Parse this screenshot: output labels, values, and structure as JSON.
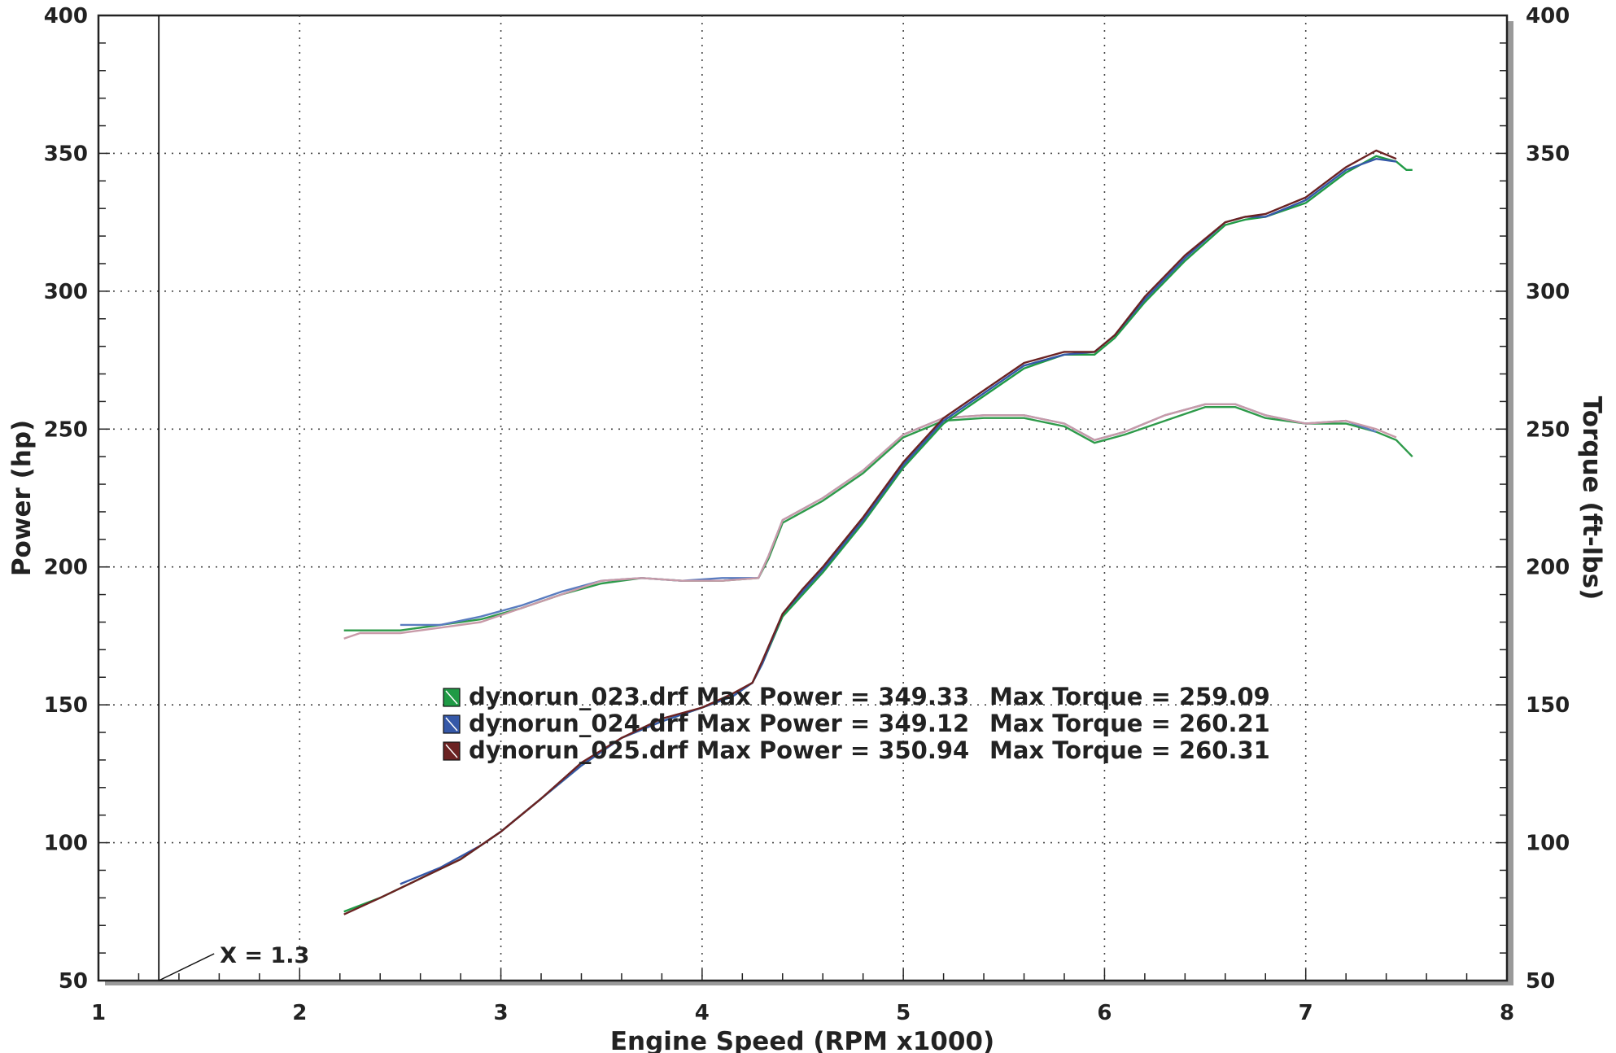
{
  "chart_data": {
    "type": "line",
    "xlabel": "Engine Speed (RPM x1000)",
    "ylabel_left": "Power (hp)",
    "ylabel_right": "Torque (ft-lbs)",
    "xlim": [
      1,
      8
    ],
    "ylim_left": [
      50,
      400
    ],
    "ylim_right": [
      50,
      400
    ],
    "x_ticks": [
      1,
      2,
      3,
      4,
      5,
      6,
      7,
      8
    ],
    "y_ticks_left": [
      50,
      100,
      150,
      200,
      250,
      300,
      350,
      400
    ],
    "y_ticks_right": [
      50,
      100,
      150,
      200,
      250,
      300,
      350,
      400
    ],
    "grid": true,
    "annotation": {
      "text": "X = 1.3",
      "x": 1.3
    },
    "legend": [
      {
        "file": "dynorun_023.drf",
        "text": "Max Power = 349.33",
        "torque": "Max Torque = 259.09"
      },
      {
        "file": "dynorun_024.drf",
        "text": "Max Power = 349.12",
        "torque": "Max Torque = 260.21"
      },
      {
        "file": "dynorun_025.drf",
        "text": "Max Power = 350.94",
        "torque": "Max Torque = 260.31"
      }
    ],
    "series": [
      {
        "name": "dynorun_023.drf",
        "power_color": "#1f9a45",
        "torque_color": "#2e9a4a",
        "power": [
          [
            2.22,
            75
          ],
          [
            2.4,
            80
          ],
          [
            2.6,
            87
          ],
          [
            2.8,
            94
          ],
          [
            3.0,
            104
          ],
          [
            3.2,
            116
          ],
          [
            3.4,
            128
          ],
          [
            3.6,
            138
          ],
          [
            3.8,
            144
          ],
          [
            4.0,
            149
          ],
          [
            4.15,
            153
          ],
          [
            4.25,
            158
          ],
          [
            4.3,
            165
          ],
          [
            4.4,
            182
          ],
          [
            4.5,
            190
          ],
          [
            4.6,
            198
          ],
          [
            4.8,
            216
          ],
          [
            5.0,
            236
          ],
          [
            5.2,
            252
          ],
          [
            5.4,
            262
          ],
          [
            5.6,
            272
          ],
          [
            5.8,
            277
          ],
          [
            5.95,
            277
          ],
          [
            6.05,
            283
          ],
          [
            6.2,
            296
          ],
          [
            6.4,
            311
          ],
          [
            6.6,
            324
          ],
          [
            6.7,
            326
          ],
          [
            6.8,
            327
          ],
          [
            7.0,
            332
          ],
          [
            7.2,
            343
          ],
          [
            7.35,
            349
          ],
          [
            7.45,
            347
          ],
          [
            7.5,
            344
          ],
          [
            7.53,
            344
          ]
        ],
        "torque": [
          [
            2.22,
            177
          ],
          [
            2.5,
            177
          ],
          [
            2.7,
            179
          ],
          [
            2.9,
            181
          ],
          [
            3.1,
            185
          ],
          [
            3.3,
            190
          ],
          [
            3.5,
            194
          ],
          [
            3.7,
            196
          ],
          [
            3.9,
            195
          ],
          [
            4.1,
            195
          ],
          [
            4.28,
            196
          ],
          [
            4.33,
            203
          ],
          [
            4.4,
            216
          ],
          [
            4.5,
            220
          ],
          [
            4.6,
            224
          ],
          [
            4.8,
            234
          ],
          [
            5.0,
            247
          ],
          [
            5.2,
            253
          ],
          [
            5.4,
            254
          ],
          [
            5.6,
            254
          ],
          [
            5.8,
            251
          ],
          [
            5.95,
            245
          ],
          [
            6.1,
            248
          ],
          [
            6.3,
            253
          ],
          [
            6.5,
            258
          ],
          [
            6.65,
            258
          ],
          [
            6.8,
            254
          ],
          [
            7.0,
            252
          ],
          [
            7.2,
            252
          ],
          [
            7.35,
            249
          ],
          [
            7.45,
            246
          ],
          [
            7.53,
            240
          ]
        ]
      },
      {
        "name": "dynorun_024.drf",
        "power_color": "#3558a8",
        "torque_color": "#5a7cc0",
        "power": [
          [
            2.5,
            85
          ],
          [
            2.7,
            91
          ],
          [
            2.9,
            99
          ],
          [
            3.0,
            104
          ],
          [
            3.2,
            116
          ],
          [
            3.4,
            128
          ],
          [
            3.6,
            138
          ],
          [
            3.8,
            144
          ],
          [
            4.0,
            149
          ],
          [
            4.15,
            153
          ],
          [
            4.25,
            158
          ],
          [
            4.3,
            165
          ],
          [
            4.4,
            183
          ],
          [
            4.5,
            191
          ],
          [
            4.6,
            199
          ],
          [
            4.8,
            217
          ],
          [
            5.0,
            237
          ],
          [
            5.2,
            253
          ],
          [
            5.4,
            263
          ],
          [
            5.6,
            273
          ],
          [
            5.8,
            277
          ],
          [
            5.95,
            278
          ],
          [
            6.05,
            284
          ],
          [
            6.2,
            297
          ],
          [
            6.4,
            312
          ],
          [
            6.6,
            325
          ],
          [
            6.7,
            327
          ],
          [
            6.8,
            327
          ],
          [
            7.0,
            333
          ],
          [
            7.2,
            344
          ],
          [
            7.35,
            348
          ],
          [
            7.45,
            347
          ]
        ],
        "torque": [
          [
            2.5,
            179
          ],
          [
            2.7,
            179
          ],
          [
            2.9,
            182
          ],
          [
            3.1,
            186
          ],
          [
            3.3,
            191
          ],
          [
            3.5,
            195
          ],
          [
            3.7,
            196
          ],
          [
            3.9,
            195
          ],
          [
            4.1,
            196
          ],
          [
            4.28,
            196
          ],
          [
            4.33,
            204
          ],
          [
            4.4,
            217
          ],
          [
            4.5,
            221
          ],
          [
            4.6,
            225
          ],
          [
            4.8,
            235
          ],
          [
            5.0,
            248
          ],
          [
            5.2,
            254
          ],
          [
            5.4,
            255
          ],
          [
            5.6,
            255
          ],
          [
            5.8,
            252
          ],
          [
            5.95,
            246
          ],
          [
            6.1,
            249
          ],
          [
            6.3,
            255
          ],
          [
            6.5,
            259
          ],
          [
            6.65,
            259
          ],
          [
            6.8,
            255
          ],
          [
            7.0,
            252
          ],
          [
            7.2,
            253
          ],
          [
            7.35,
            249
          ]
        ]
      },
      {
        "name": "dynorun_025.drf",
        "power_color": "#6b2222",
        "torque_color": "#c89aa8",
        "power": [
          [
            2.22,
            74
          ],
          [
            2.4,
            80
          ],
          [
            2.6,
            87
          ],
          [
            2.8,
            94
          ],
          [
            3.0,
            104
          ],
          [
            3.2,
            116
          ],
          [
            3.4,
            129
          ],
          [
            3.6,
            138
          ],
          [
            3.8,
            145
          ],
          [
            4.0,
            149
          ],
          [
            4.15,
            154
          ],
          [
            4.25,
            158
          ],
          [
            4.3,
            166
          ],
          [
            4.4,
            183
          ],
          [
            4.5,
            192
          ],
          [
            4.6,
            200
          ],
          [
            4.8,
            218
          ],
          [
            5.0,
            238
          ],
          [
            5.2,
            254
          ],
          [
            5.4,
            264
          ],
          [
            5.6,
            274
          ],
          [
            5.8,
            278
          ],
          [
            5.95,
            278
          ],
          [
            6.05,
            284
          ],
          [
            6.2,
            298
          ],
          [
            6.4,
            313
          ],
          [
            6.6,
            325
          ],
          [
            6.7,
            327
          ],
          [
            6.8,
            328
          ],
          [
            7.0,
            334
          ],
          [
            7.2,
            345
          ],
          [
            7.35,
            351
          ],
          [
            7.45,
            348
          ]
        ],
        "torque": [
          [
            2.22,
            174
          ],
          [
            2.3,
            176
          ],
          [
            2.5,
            176
          ],
          [
            2.7,
            178
          ],
          [
            2.9,
            180
          ],
          [
            3.1,
            185
          ],
          [
            3.3,
            190
          ],
          [
            3.5,
            195
          ],
          [
            3.7,
            196
          ],
          [
            3.9,
            195
          ],
          [
            4.1,
            195
          ],
          [
            4.28,
            196
          ],
          [
            4.33,
            204
          ],
          [
            4.4,
            217
          ],
          [
            4.5,
            221
          ],
          [
            4.6,
            225
          ],
          [
            4.8,
            235
          ],
          [
            5.0,
            248
          ],
          [
            5.2,
            254
          ],
          [
            5.4,
            255
          ],
          [
            5.6,
            255
          ],
          [
            5.8,
            252
          ],
          [
            5.95,
            246
          ],
          [
            6.1,
            249
          ],
          [
            6.3,
            255
          ],
          [
            6.5,
            259
          ],
          [
            6.65,
            259
          ],
          [
            6.8,
            255
          ],
          [
            7.0,
            252
          ],
          [
            7.2,
            253
          ],
          [
            7.35,
            250
          ],
          [
            7.45,
            247
          ]
        ]
      }
    ]
  }
}
